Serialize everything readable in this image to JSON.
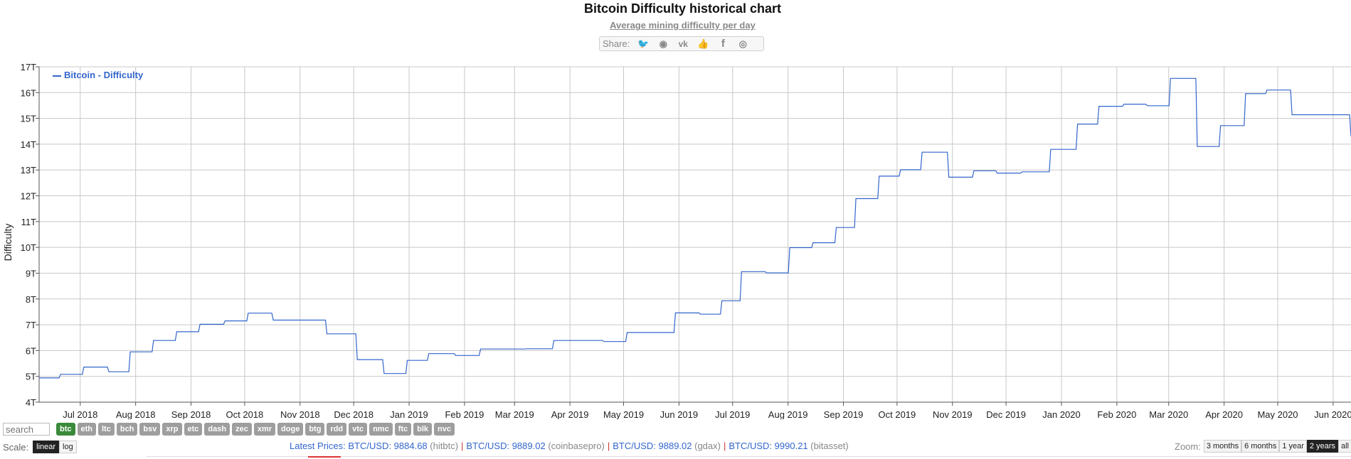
{
  "header": {
    "title": "Bitcoin Difficulty historical chart",
    "subtitle": "Average mining difficulty per day"
  },
  "share": {
    "label": "Share:",
    "icons": [
      "twitter-icon",
      "reddit-icon",
      "vk-icon",
      "like-icon",
      "facebook-icon",
      "weibo-icon"
    ]
  },
  "chart_data": {
    "type": "line",
    "title": "Bitcoin Difficulty historical chart",
    "subtitle": "Average mining difficulty per day",
    "ylabel": "Difficulty",
    "xlabel": "",
    "ylim": [
      4,
      17
    ],
    "xlim": [
      "2018-06-08",
      "2020-06-11"
    ],
    "y_unit_suffix": "T",
    "yticks": [
      "4T",
      "5T",
      "6T",
      "7T",
      "8T",
      "9T",
      "10T",
      "11T",
      "12T",
      "13T",
      "14T",
      "15T",
      "16T",
      "17T"
    ],
    "xticks": [
      {
        "label": "Jul 2018",
        "date": "2018-07-01"
      },
      {
        "label": "Aug 2018",
        "date": "2018-08-01"
      },
      {
        "label": "Sep 2018",
        "date": "2018-09-01"
      },
      {
        "label": "Oct 2018",
        "date": "2018-10-01"
      },
      {
        "label": "Nov 2018",
        "date": "2018-11-01"
      },
      {
        "label": "Dec 2018",
        "date": "2018-12-01"
      },
      {
        "label": "Jan 2019",
        "date": "2019-01-01"
      },
      {
        "label": "Feb 2019",
        "date": "2019-02-01"
      },
      {
        "label": "Mar 2019",
        "date": "2019-03-01"
      },
      {
        "label": "Apr 2019",
        "date": "2019-04-01"
      },
      {
        "label": "May 2019",
        "date": "2019-05-01"
      },
      {
        "label": "Jun 2019",
        "date": "2019-06-01"
      },
      {
        "label": "Jul 2019",
        "date": "2019-07-01"
      },
      {
        "label": "Aug 2019",
        "date": "2019-08-01"
      },
      {
        "label": "Sep 2019",
        "date": "2019-09-01"
      },
      {
        "label": "Oct 2019",
        "date": "2019-10-01"
      },
      {
        "label": "Nov 2019",
        "date": "2019-11-01"
      },
      {
        "label": "Dec 2019",
        "date": "2019-12-01"
      },
      {
        "label": "Jan 2020",
        "date": "2020-01-01"
      },
      {
        "label": "Feb 2020",
        "date": "2020-02-01"
      },
      {
        "label": "Mar 2020",
        "date": "2020-03-01"
      },
      {
        "label": "Apr 2020",
        "date": "2020-04-01"
      },
      {
        "label": "May 2020",
        "date": "2020-05-01"
      },
      {
        "label": "Jun 2020",
        "date": "2020-06-01"
      }
    ],
    "grid": true,
    "legend_position": "top-left",
    "series": [
      {
        "name": "Bitcoin - Difficulty",
        "color": "#3366cc",
        "step": true,
        "points": [
          [
            "2018-06-08",
            4.94
          ],
          [
            "2018-06-20",
            5.08
          ],
          [
            "2018-07-03",
            5.36
          ],
          [
            "2018-07-17",
            5.18
          ],
          [
            "2018-07-29",
            5.95
          ],
          [
            "2018-08-11",
            6.39
          ],
          [
            "2018-08-24",
            6.73
          ],
          [
            "2018-09-06",
            7.02
          ],
          [
            "2018-09-20",
            7.15
          ],
          [
            "2018-10-03",
            7.45
          ],
          [
            "2018-10-17",
            7.18
          ],
          [
            "2018-11-16",
            6.65
          ],
          [
            "2018-12-03",
            5.65
          ],
          [
            "2018-12-18",
            5.11
          ],
          [
            "2018-12-31",
            5.62
          ],
          [
            "2019-01-12",
            5.88
          ],
          [
            "2019-01-27",
            5.81
          ],
          [
            "2019-02-10",
            6.06
          ],
          [
            "2019-03-08",
            6.07
          ],
          [
            "2019-03-23",
            6.39
          ],
          [
            "2019-04-20",
            6.35
          ],
          [
            "2019-05-03",
            6.7
          ],
          [
            "2019-05-30",
            7.46
          ],
          [
            "2019-06-13",
            7.41
          ],
          [
            "2019-06-25",
            7.93
          ],
          [
            "2019-07-06",
            9.06
          ],
          [
            "2019-07-20",
            9.01
          ],
          [
            "2019-08-02",
            9.99
          ],
          [
            "2019-08-15",
            10.18
          ],
          [
            "2019-08-28",
            10.77
          ],
          [
            "2019-09-08",
            11.89
          ],
          [
            "2019-09-21",
            12.76
          ],
          [
            "2019-10-03",
            13.01
          ],
          [
            "2019-10-15",
            13.69
          ],
          [
            "2019-10-30",
            12.72
          ],
          [
            "2019-11-13",
            12.97
          ],
          [
            "2019-11-26",
            12.88
          ],
          [
            "2019-12-10",
            12.93
          ],
          [
            "2019-12-26",
            13.8
          ],
          [
            "2020-01-10",
            14.78
          ],
          [
            "2020-01-22",
            15.47
          ],
          [
            "2020-02-05",
            15.55
          ],
          [
            "2020-02-18",
            15.49
          ],
          [
            "2020-03-02",
            16.55
          ],
          [
            "2020-03-17",
            13.91
          ],
          [
            "2020-03-30",
            14.72
          ],
          [
            "2020-04-13",
            15.96
          ],
          [
            "2020-04-25",
            16.1
          ],
          [
            "2020-05-09",
            15.14
          ],
          [
            "2020-06-11",
            14.3
          ]
        ]
      }
    ]
  },
  "controls": {
    "search_placeholder": "search",
    "coins": [
      "btc",
      "eth",
      "ltc",
      "bch",
      "bsv",
      "xrp",
      "etc",
      "dash",
      "zec",
      "xmr",
      "doge",
      "btg",
      "rdd",
      "vtc",
      "nmc",
      "ftc",
      "blk",
      "nvc"
    ],
    "active_coin": "btc",
    "scale_label": "Scale:",
    "scale_options": [
      "linear",
      "log"
    ],
    "active_scale": "linear",
    "zoom_label": "Zoom:",
    "zoom_options": [
      "3 months",
      "6 months",
      "1 year",
      "2 years",
      "all ti"
    ],
    "active_zoom": "2 years"
  },
  "prices": {
    "label": "Latest Prices:",
    "items": [
      {
        "pair": "BTC/USD: 9884.68",
        "src": "(hitbtc)"
      },
      {
        "pair": "BTC/USD: 9889.02",
        "src": "(coinbasepro)"
      },
      {
        "pair": "BTC/USD: 9889.02",
        "src": "(gdax)"
      },
      {
        "pair": "BTC/USD: 9990.21",
        "src": "(bitasset)"
      }
    ]
  }
}
